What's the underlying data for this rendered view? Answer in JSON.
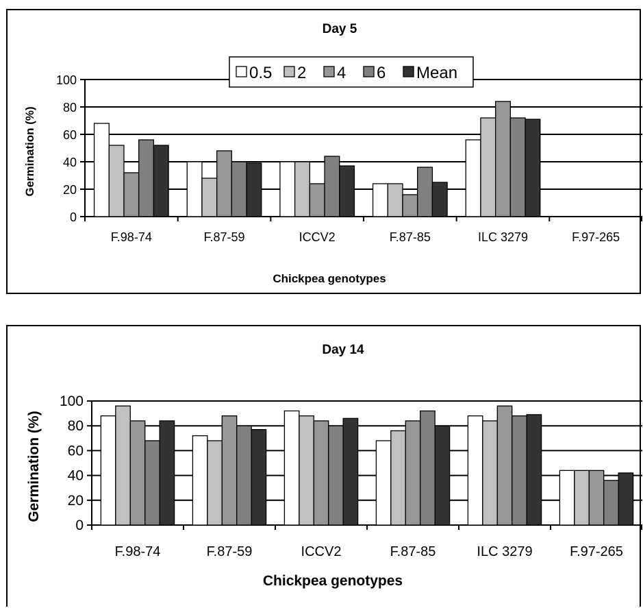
{
  "chart_data": [
    {
      "type": "bar",
      "title": "Day 5",
      "xlabel": "Chickpea genotypes",
      "ylabel": "Germination (%)",
      "ylim": [
        0,
        100
      ],
      "yticks": [
        "0",
        "20",
        "40",
        "60",
        "80",
        "100"
      ],
      "grid": true,
      "legend_position": "top-center",
      "categories": [
        "F.98-74",
        "F.87-59",
        "ICCV2",
        "F.87-85",
        "ILC 3279",
        "F.97-265"
      ],
      "series": [
        {
          "name": "0.5",
          "color": "#ffffff",
          "values": [
            68,
            40,
            40,
            24,
            56,
            0
          ]
        },
        {
          "name": "2",
          "color": "#c0c0c0",
          "values": [
            52,
            28,
            40,
            24,
            72,
            0
          ]
        },
        {
          "name": "4",
          "color": "#969696",
          "values": [
            32,
            48,
            24,
            16,
            84,
            0
          ]
        },
        {
          "name": "6",
          "color": "#808080",
          "values": [
            56,
            40,
            44,
            36,
            72,
            0
          ]
        },
        {
          "name": "Mean",
          "color": "#333333",
          "values": [
            52,
            39,
            37,
            25,
            71,
            0
          ]
        }
      ]
    },
    {
      "type": "bar",
      "title": "Day 14",
      "xlabel": "Chickpea genotypes",
      "ylabel": "Germination (%)",
      "ylim": [
        0,
        100
      ],
      "yticks": [
        "0",
        "20",
        "40",
        "60",
        "80",
        "100"
      ],
      "grid": true,
      "categories": [
        "F.98-74",
        "F.87-59",
        "ICCV2",
        "F.87-85",
        "ILC 3279",
        "F.97-265"
      ],
      "series": [
        {
          "name": "0.5",
          "color": "#ffffff",
          "values": [
            88,
            72,
            92,
            68,
            88,
            44
          ]
        },
        {
          "name": "2",
          "color": "#c0c0c0",
          "values": [
            96,
            68,
            88,
            76,
            84,
            44
          ]
        },
        {
          "name": "4",
          "color": "#969696",
          "values": [
            84,
            88,
            84,
            84,
            96,
            44
          ]
        },
        {
          "name": "6",
          "color": "#808080",
          "values": [
            68,
            80,
            80,
            92,
            88,
            36
          ]
        },
        {
          "name": "Mean",
          "color": "#333333",
          "values": [
            84,
            77,
            86,
            80,
            89,
            42
          ]
        }
      ]
    }
  ]
}
